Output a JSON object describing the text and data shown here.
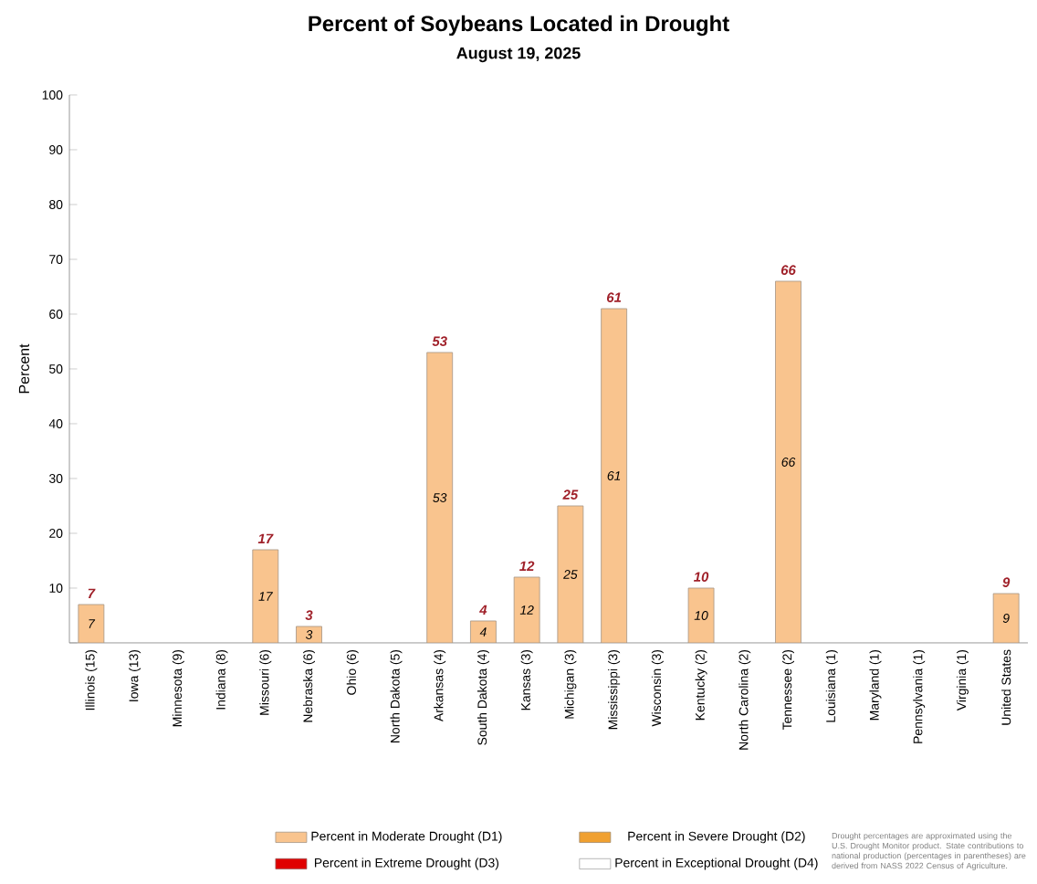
{
  "chart_data": {
    "type": "bar",
    "stacked": true,
    "title": "Percent of Soybeans Located in Drought",
    "subtitle": "August 19, 2025",
    "ylabel": "Percent",
    "categories": [
      "Illinois (15)",
      "Iowa (13)",
      "Minnesota (9)",
      "Indiana (8)",
      "Missouri (6)",
      "Nebraska (6)",
      "Ohio (6)",
      "North Dakota (5)",
      "Arkansas (4)",
      "South Dakota (4)",
      "Kansas (3)",
      "Michigan (3)",
      "Mississippi (3)",
      "Wisconsin (3)",
      "Kentucky (2)",
      "North Carolina (2)",
      "Tennessee (2)",
      "Louisiana (1)",
      "Maryland (1)",
      "Pennsylvania (1)",
      "Virginia (1)",
      "United States"
    ],
    "series": [
      {
        "name": "Percent in Moderate Drought (D1)",
        "color": "#f9c48e",
        "values": [
          7,
          0,
          0,
          0,
          17,
          3,
          0,
          0,
          53,
          4,
          12,
          25,
          61,
          0,
          10,
          0,
          66,
          0,
          0,
          0,
          0,
          9
        ],
        "value_labels": [
          "7",
          null,
          null,
          null,
          "17",
          "3",
          null,
          null,
          "53",
          "4",
          "12",
          "25",
          "61",
          null,
          "10",
          null,
          "66",
          null,
          null,
          null,
          null,
          "9"
        ]
      },
      {
        "name": "Percent in Severe Drought (D2)",
        "color": "#f0a030",
        "values": [
          0,
          0,
          0,
          0,
          0,
          0,
          0,
          0,
          0,
          0,
          0,
          0,
          0,
          0,
          0,
          0,
          0,
          0,
          0,
          0,
          0,
          0
        ]
      },
      {
        "name": "Percent in Extreme Drought (D3)",
        "color": "#e00000",
        "values": [
          0,
          0,
          0,
          0,
          0,
          0,
          0,
          0,
          0,
          0,
          0,
          0,
          0,
          0,
          0,
          0,
          0,
          0,
          0,
          0,
          0,
          0
        ]
      },
      {
        "name": "Percent in Exceptional Drought (D4)",
        "color": "#ffffff",
        "values": [
          0,
          0,
          0,
          0,
          0,
          0,
          0,
          0,
          0,
          0,
          0,
          0,
          0,
          0,
          0,
          0,
          0,
          0,
          0,
          0,
          0,
          0
        ]
      }
    ],
    "totals": [
      "7",
      null,
      null,
      null,
      "17",
      "3",
      null,
      null,
      "53",
      "4",
      "12",
      "25",
      "61",
      null,
      "10",
      null,
      "66",
      null,
      null,
      null,
      null,
      "9"
    ],
    "ylim": [
      0,
      100
    ],
    "yticks": [
      {
        "value": 0,
        "label": null
      },
      10,
      20,
      30,
      40,
      50,
      60,
      70,
      80,
      90,
      100
    ],
    "grid": false,
    "legend": "bottom",
    "annotations": [
      "Drought percentages are approximated using the U.S. Drought Monitor product. State contributions to national production (percentages in parentheses) are derived from NASS 2022 Census of Agriculture."
    ]
  }
}
